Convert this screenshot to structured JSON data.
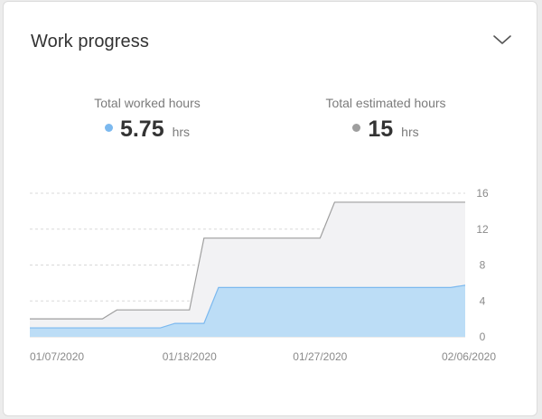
{
  "widget": {
    "title": "Work progress",
    "collapse_icon": "chevron-down-icon"
  },
  "stats": {
    "worked": {
      "label": "Total worked hours",
      "value": "5.75",
      "unit": "hrs",
      "color": "#7cb9ef"
    },
    "estimated": {
      "label": "Total estimated hours",
      "value": "15",
      "unit": "hrs",
      "color": "#9e9e9e"
    }
  },
  "chart_data": {
    "type": "area",
    "x_ticks": [
      "01/07/2020",
      "01/18/2020",
      "01/27/2020",
      "02/06/2020"
    ],
    "y_ticks": [
      "0",
      "4",
      "8",
      "12",
      "16"
    ],
    "ylim": [
      0,
      16
    ],
    "grid": true,
    "series": [
      {
        "name": "Total estimated hours",
        "color": "#9e9e9e",
        "fill": "#f2f2f4",
        "points": [
          [
            "01/07/2020",
            2
          ],
          [
            "01/12/2020",
            2
          ],
          [
            "01/13/2020",
            3
          ],
          [
            "01/18/2020",
            3
          ],
          [
            "01/19/2020",
            11
          ],
          [
            "01/27/2020",
            11
          ],
          [
            "01/28/2020",
            15
          ],
          [
            "02/06/2020",
            15
          ]
        ]
      },
      {
        "name": "Total worked hours",
        "color": "#7cb9ef",
        "fill": "#bcddf6",
        "points": [
          [
            "01/07/2020",
            1
          ],
          [
            "01/16/2020",
            1
          ],
          [
            "01/17/2020",
            1.5
          ],
          [
            "01/19/2020",
            1.5
          ],
          [
            "01/20/2020",
            5.5
          ],
          [
            "02/05/2020",
            5.5
          ],
          [
            "02/06/2020",
            5.75
          ]
        ]
      }
    ]
  }
}
